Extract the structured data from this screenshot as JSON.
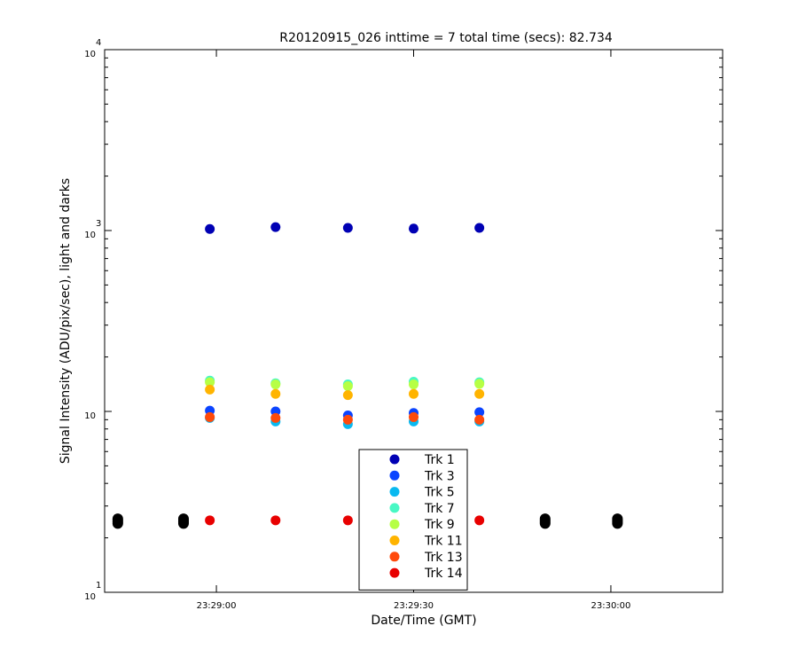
{
  "chart_data": {
    "type": "scatter",
    "title": "R20120915_026 inttime = 7 total time (secs): 82.734",
    "xlabel": "Date/Time (GMT)",
    "ylabel": "Signal Intensity (ADU/pix/sec), light and darks",
    "yscale": "log",
    "ylim": [
      10,
      10000
    ],
    "y_ticks": [
      {
        "value": 10,
        "base": "10",
        "exp": "1"
      },
      {
        "value": 100,
        "base": "10",
        "exp": ""
      },
      {
        "value": 1000,
        "base": "10",
        "exp": "3"
      },
      {
        "value": 10000,
        "base": "10",
        "exp": "4"
      }
    ],
    "y_tick_labels_note": "as printed on the axis",
    "xlim": [
      "23:28:43",
      "23:30:17"
    ],
    "x_ticks": [
      "23:29:00",
      "23:29:30",
      "23:30:00"
    ],
    "grid": false,
    "legend_position": "bottom-center",
    "series": [
      {
        "name": "Trk 1",
        "color": "#0000b4",
        "x": [
          "23:28:59",
          "23:29:09",
          "23:29:20",
          "23:29:30",
          "23:29:40"
        ],
        "y": [
          1020,
          1045,
          1035,
          1025,
          1035
        ]
      },
      {
        "name": "Trk 3",
        "color": "#0b44ff",
        "x": [
          "23:28:59",
          "23:29:09",
          "23:29:20",
          "23:29:30",
          "23:29:40"
        ],
        "y": [
          101,
          100,
          95,
          98,
          99
        ]
      },
      {
        "name": "Trk 5",
        "color": "#09b9f0",
        "x": [
          "23:28:59",
          "23:29:09",
          "23:29:20",
          "23:29:30",
          "23:29:40"
        ],
        "y": [
          92,
          88,
          85,
          88,
          88
        ]
      },
      {
        "name": "Trk 7",
        "color": "#48f8c4",
        "x": [
          "23:28:59",
          "23:29:09",
          "23:29:20",
          "23:29:30",
          "23:29:40"
        ],
        "y": [
          148,
          143,
          141,
          146,
          145
        ]
      },
      {
        "name": "Trk 9",
        "color": "#b6ff45",
        "x": [
          "23:28:59",
          "23:29:09",
          "23:29:20",
          "23:29:30",
          "23:29:40"
        ],
        "y": [
          145,
          141,
          138,
          141,
          142
        ]
      },
      {
        "name": "Trk 11",
        "color": "#ffb400",
        "x": [
          "23:28:59",
          "23:29:09",
          "23:29:20",
          "23:29:30",
          "23:29:40"
        ],
        "y": [
          132,
          125,
          123,
          125,
          125
        ]
      },
      {
        "name": "Trk 13",
        "color": "#ff4a0b",
        "x": [
          "23:28:59",
          "23:29:09",
          "23:29:20",
          "23:29:30",
          "23:29:40"
        ],
        "y": [
          93,
          92,
          90,
          93,
          90
        ]
      },
      {
        "name": "Trk 14",
        "color": "#e80000",
        "x": [
          "23:28:59",
          "23:29:09",
          "23:29:20",
          "23:29:30",
          "23:29:40"
        ],
        "y": [
          25,
          25,
          25,
          25,
          25
        ]
      }
    ],
    "darks": {
      "color": "#000000",
      "x": [
        "23:28:45",
        "23:28:55",
        "23:29:50",
        "23:30:01"
      ],
      "y_samples": [
        24,
        24.5,
        25,
        25.5
      ]
    }
  }
}
